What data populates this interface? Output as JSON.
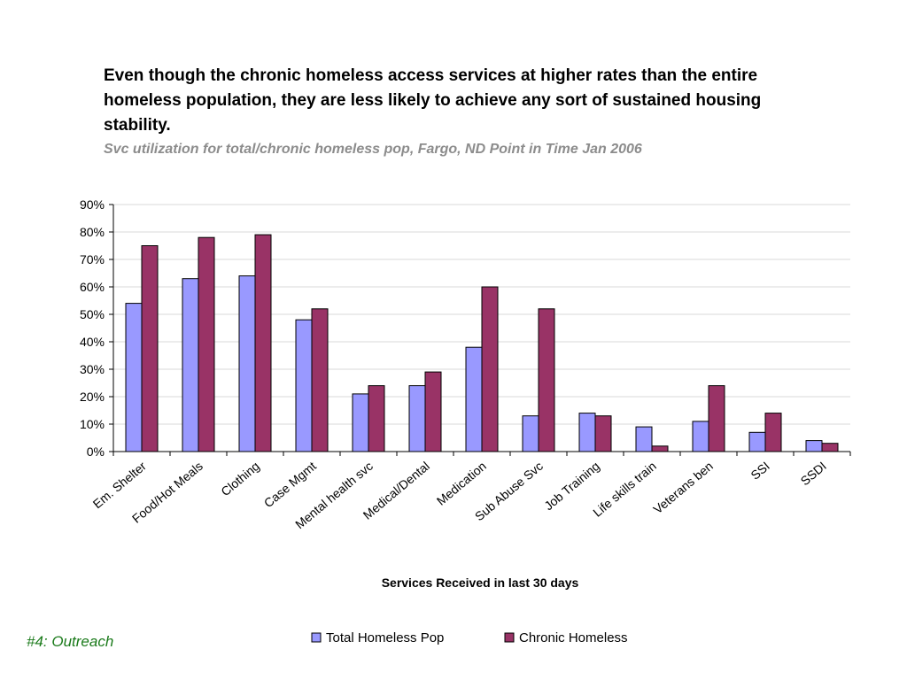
{
  "footer": {
    "note": "#4: Outreach"
  },
  "chart_data": {
    "type": "bar",
    "title": "Even though the chronic homeless access services at higher rates than the entire homeless population, they are less likely to achieve any sort of sustained housing stability.",
    "subtitle": "Svc utilization for total/chronic homeless pop, Fargo, ND Point in Time Jan 2006",
    "xlabel": "Services Received in last 30 days",
    "ylabel": "",
    "ylim": [
      0,
      90
    ],
    "ytick_step": 10,
    "y_unit": "%",
    "grid": true,
    "legend_position": "bottom",
    "categories": [
      "Em. Shelter",
      "Food/Hot Meals",
      "Clothing",
      "Case Mgmt",
      "Mental health svc",
      "Medical/Dental",
      "Medication",
      "Sub Abuse Svc",
      "Job Training",
      "Life skills train",
      "Veterans ben",
      "SSI",
      "SSDI"
    ],
    "series": [
      {
        "name": "Total Homeless Pop",
        "color": "#9999ff",
        "values": [
          54,
          63,
          64,
          48,
          21,
          24,
          38,
          13,
          14,
          9,
          11,
          7,
          4
        ]
      },
      {
        "name": "Chronic Homeless",
        "color": "#993366",
        "values": [
          75,
          78,
          79,
          52,
          24,
          29,
          60,
          52,
          13,
          2,
          24,
          14,
          3
        ]
      }
    ]
  }
}
